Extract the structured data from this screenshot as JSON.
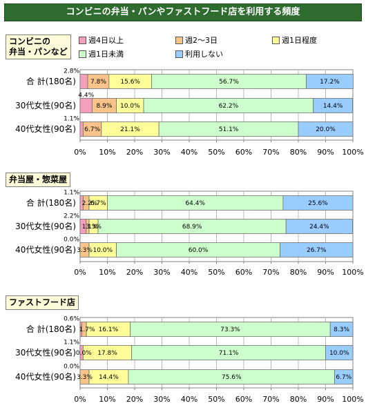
{
  "title": "コンビニの弁当・パンやファストフード店を利用する頻度",
  "legend": [
    {
      "label": "週4日以上",
      "color": "#f4a0bc"
    },
    {
      "label": "週2～3日",
      "color": "#f8c48a"
    },
    {
      "label": "週1日程度",
      "color": "#ffff9a"
    },
    {
      "label": "週1日未満",
      "color": "#ccffcc"
    },
    {
      "label": "利用しない",
      "color": "#99ccff"
    }
  ],
  "colors": [
    "#f4a0bc",
    "#f8c48a",
    "#ffff9a",
    "#ccffcc",
    "#99ccff"
  ],
  "axis_ticks": [
    "0%",
    "10%",
    "20%",
    "30%",
    "40%",
    "50%",
    "60%",
    "70%",
    "80%",
    "90%",
    "100%"
  ],
  "chart_data": [
    {
      "type": "bar",
      "title": "コンビニの\n弁当・パンなど",
      "orientation": "horizontal-stacked-100",
      "categories": [
        "合 計(180名)",
        "30代女性(90名)",
        "40代女性(90名)"
      ],
      "series": [
        {
          "name": "週4日以上",
          "values": [
            2.8,
            4.4,
            1.1
          ]
        },
        {
          "name": "週2～3日",
          "values": [
            7.8,
            8.9,
            6.7
          ]
        },
        {
          "name": "週1日程度",
          "values": [
            15.6,
            10.0,
            21.1
          ]
        },
        {
          "name": "週1日未満",
          "values": [
            56.7,
            62.2,
            51.1
          ]
        },
        {
          "name": "利用しない",
          "values": [
            17.2,
            14.4,
            20.0
          ]
        }
      ],
      "labels": [
        [
          "2.8%",
          "7.8%",
          "15.6%",
          "56.7%",
          "17.2%"
        ],
        [
          "4.4%",
          "8.9%",
          "10.0%",
          "62.2%",
          "14.4%"
        ],
        [
          "1.1%",
          "6.7%",
          "21.1%",
          "51.1%",
          "20.0%"
        ]
      ],
      "xlim": [
        0,
        100
      ]
    },
    {
      "type": "bar",
      "title": "弁当屋・惣菜屋",
      "orientation": "horizontal-stacked-100",
      "categories": [
        "合 計(180名)",
        "30代女性(90名)",
        "40代女性(90名)"
      ],
      "series": [
        {
          "name": "週4日以上",
          "values": [
            1.1,
            2.2,
            0.0
          ]
        },
        {
          "name": "週2～3日",
          "values": [
            2.2,
            1.1,
            3.3
          ]
        },
        {
          "name": "週1日程度",
          "values": [
            6.7,
            3.3,
            10.0
          ]
        },
        {
          "name": "週1日未満",
          "values": [
            64.4,
            68.9,
            60.0
          ]
        },
        {
          "name": "利用しない",
          "values": [
            25.6,
            24.4,
            26.7
          ]
        }
      ],
      "labels": [
        [
          "1.1%",
          "2.2%",
          "6.7%",
          "64.4%",
          "25.6%"
        ],
        [
          "2.2%",
          "1.1%",
          "3.3%",
          "68.9%",
          "24.4%"
        ],
        [
          "0.0%",
          "3.3%",
          "10.0%",
          "60.0%",
          "26.7%"
        ]
      ],
      "xlim": [
        0,
        100
      ]
    },
    {
      "type": "bar",
      "title": "ファストフード店",
      "orientation": "horizontal-stacked-100",
      "categories": [
        "合 計(180名)",
        "30代女性(90名)",
        "40代女性(90名)"
      ],
      "series": [
        {
          "name": "週4日以上",
          "values": [
            0.6,
            1.1,
            0.0
          ]
        },
        {
          "name": "週2～3日",
          "values": [
            1.7,
            0.0,
            3.3
          ]
        },
        {
          "name": "週1日程度",
          "values": [
            16.1,
            17.8,
            14.4
          ]
        },
        {
          "name": "週1日未満",
          "values": [
            73.3,
            71.1,
            75.6
          ]
        },
        {
          "name": "利用しない",
          "values": [
            8.3,
            10.0,
            6.7
          ]
        }
      ],
      "labels": [
        [
          "0.6%",
          "1.7%",
          "16.1%",
          "73.3%",
          "8.3%"
        ],
        [
          "1.1%",
          "0.0%",
          "17.8%",
          "71.1%",
          "10.0%"
        ],
        [
          "0.0%",
          "3.3%",
          "14.4%",
          "75.6%",
          "6.7%"
        ]
      ],
      "xlim": [
        0,
        100
      ]
    }
  ]
}
